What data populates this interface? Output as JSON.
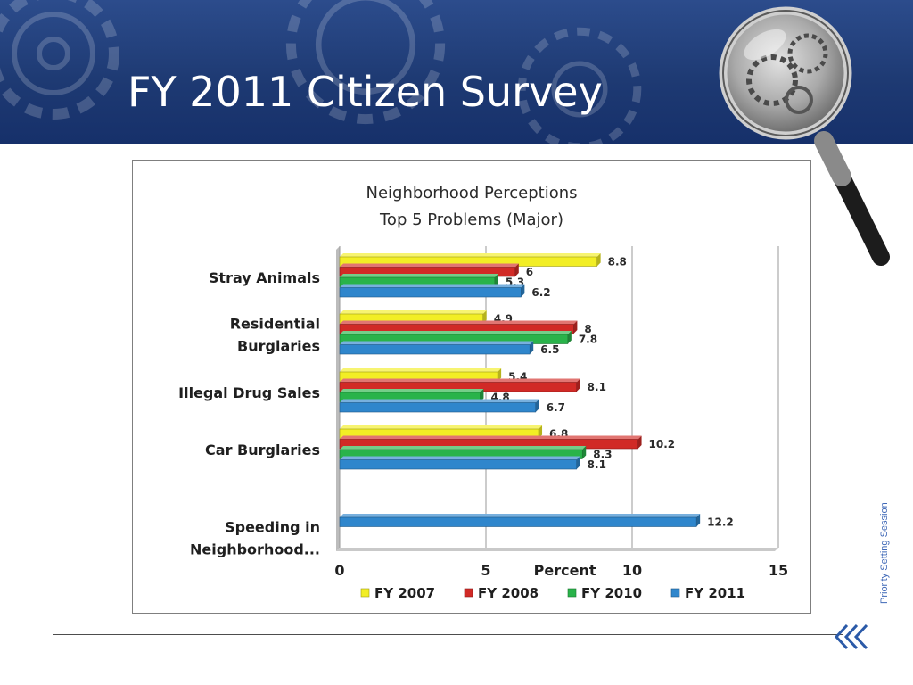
{
  "slide": {
    "title": "FY 2011 Citizen Survey",
    "side_label": "Priority Setting Session"
  },
  "icons": {
    "magnifier": "magnifying-glass-icon",
    "back": "double-chevron-left-icon",
    "gears": "gear-icon"
  },
  "colors": {
    "banner": "#1e3a73",
    "title_text": "#ffffff",
    "side_label": "#3f68b7",
    "nav_icon": "#2b5aa8"
  },
  "chart_data": {
    "type": "bar",
    "orientation": "horizontal",
    "title": [
      "Neighborhood Perceptions",
      "Top 5 Problems (Major)"
    ],
    "xlabel": "Percent",
    "xlim": [
      0,
      15
    ],
    "xticks": [
      0,
      5,
      10,
      15
    ],
    "grid": true,
    "legend_position": "bottom",
    "categories": [
      [
        "Stray Animals"
      ],
      [
        "Residential",
        "Burglaries"
      ],
      [
        "Illegal Drug Sales"
      ],
      [
        "Car Burglaries"
      ],
      [
        "Speeding in",
        "Neighborhood..."
      ]
    ],
    "series": [
      {
        "name": "FY 2007",
        "color": "#f2ee25",
        "values": [
          8.8,
          4.9,
          5.4,
          6.8,
          null
        ]
      },
      {
        "name": "FY 2008",
        "color": "#d12a26",
        "values": [
          6,
          8,
          8.1,
          10.2,
          null
        ]
      },
      {
        "name": "FY 2010",
        "color": "#29b34a",
        "values": [
          5.3,
          7.8,
          4.8,
          8.3,
          null
        ]
      },
      {
        "name": "FY 2011",
        "color": "#2f86cc",
        "values": [
          6.2,
          6.5,
          6.7,
          8.1,
          12.2
        ]
      }
    ]
  }
}
